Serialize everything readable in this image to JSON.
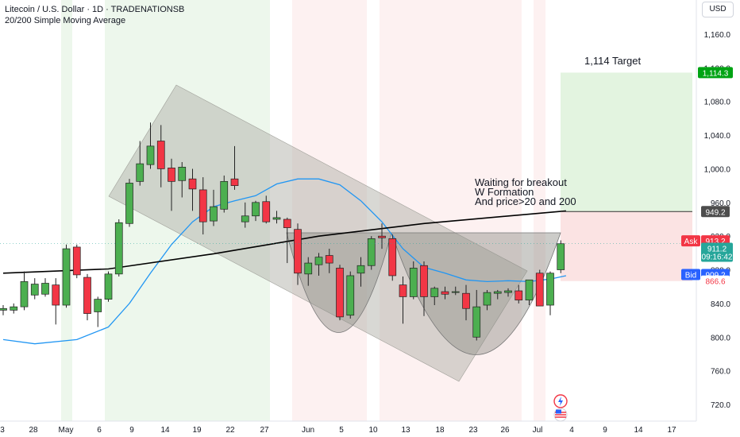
{
  "header": {
    "title": "Litecoin / U.S. Dollar · 1D · TRADENATIONSB",
    "subtitle": "20/200 Simple Moving Average"
  },
  "currency_label": "USD",
  "annotations": {
    "target": "1,114 Target",
    "note_line1": "Waiting for breakout",
    "note_line2": "W Formation",
    "note_line3": "And price>20 and 200"
  },
  "colors": {
    "up": "#26a69a",
    "up_fill": "#4caf50",
    "down": "#f23645",
    "ma20": "#2196f3",
    "ma200": "#000000",
    "profit_zone": "#e3f4e0",
    "loss_zone": "#fbe3e3",
    "green_band": "#edf7ec",
    "red_band": "#fdf1f1",
    "channel": "#b2b2aa"
  },
  "chart_data": {
    "type": "candlestick",
    "title": "Litecoin / U.S. Dollar · 1D · TRADENATIONSB",
    "x_tick_labels": [
      "3",
      "28",
      "May",
      "6",
      "9",
      "14",
      "19",
      "22",
      "27",
      "Jun",
      "5",
      "10",
      "13",
      "18",
      "23",
      "26",
      "Jul",
      "4",
      "9",
      "14",
      "17"
    ],
    "y_tick_labels": [
      "1,160.0",
      "1,120.0",
      "1,080.0",
      "1,040.0",
      "1,000.0",
      "960.0",
      "920.0",
      "880.0",
      "840.0",
      "800.0",
      "760.0",
      "720.0"
    ],
    "ylim": [
      700,
      1190
    ],
    "candles": [
      {
        "o": 832,
        "h": 838,
        "l": 826,
        "c": 834
      },
      {
        "o": 832,
        "h": 840,
        "l": 828,
        "c": 836
      },
      {
        "o": 836,
        "h": 878,
        "l": 832,
        "c": 866
      },
      {
        "o": 850,
        "h": 870,
        "l": 845,
        "c": 863
      },
      {
        "o": 851,
        "h": 870,
        "l": 848,
        "c": 864
      },
      {
        "o": 862,
        "h": 870,
        "l": 815,
        "c": 838
      },
      {
        "o": 838,
        "h": 910,
        "l": 835,
        "c": 905
      },
      {
        "o": 907,
        "h": 910,
        "l": 870,
        "c": 874
      },
      {
        "o": 871,
        "h": 875,
        "l": 820,
        "c": 828
      },
      {
        "o": 830,
        "h": 848,
        "l": 812,
        "c": 845
      },
      {
        "o": 845,
        "h": 878,
        "l": 842,
        "c": 875
      },
      {
        "o": 875,
        "h": 940,
        "l": 872,
        "c": 936
      },
      {
        "o": 935,
        "h": 988,
        "l": 931,
        "c": 983
      },
      {
        "o": 985,
        "h": 1033,
        "l": 980,
        "c": 1006
      },
      {
        "o": 1005,
        "h": 1055,
        "l": 1000,
        "c": 1027
      },
      {
        "o": 1033,
        "h": 1052,
        "l": 978,
        "c": 1000
      },
      {
        "o": 1001,
        "h": 1012,
        "l": 950,
        "c": 985
      },
      {
        "o": 986,
        "h": 1008,
        "l": 966,
        "c": 1002
      },
      {
        "o": 988,
        "h": 1000,
        "l": 950,
        "c": 976
      },
      {
        "o": 975,
        "h": 990,
        "l": 922,
        "c": 937
      },
      {
        "o": 938,
        "h": 975,
        "l": 932,
        "c": 955
      },
      {
        "o": 952,
        "h": 992,
        "l": 948,
        "c": 985
      },
      {
        "o": 988,
        "h": 1027,
        "l": 975,
        "c": 980
      },
      {
        "o": 937,
        "h": 960,
        "l": 930,
        "c": 944
      },
      {
        "o": 944,
        "h": 962,
        "l": 938,
        "c": 960
      },
      {
        "o": 961,
        "h": 968,
        "l": 935,
        "c": 937
      },
      {
        "o": 940,
        "h": 950,
        "l": 935,
        "c": 942
      },
      {
        "o": 940,
        "h": 942,
        "l": 888,
        "c": 930
      },
      {
        "o": 928,
        "h": 935,
        "l": 862,
        "c": 876
      },
      {
        "o": 875,
        "h": 895,
        "l": 861,
        "c": 888
      },
      {
        "o": 886,
        "h": 900,
        "l": 873,
        "c": 895
      },
      {
        "o": 897,
        "h": 905,
        "l": 876,
        "c": 888
      },
      {
        "o": 882,
        "h": 886,
        "l": 820,
        "c": 824
      },
      {
        "o": 826,
        "h": 878,
        "l": 822,
        "c": 873
      },
      {
        "o": 876,
        "h": 895,
        "l": 860,
        "c": 885
      },
      {
        "o": 885,
        "h": 920,
        "l": 880,
        "c": 917
      },
      {
        "o": 920,
        "h": 935,
        "l": 905,
        "c": 918
      },
      {
        "o": 917,
        "h": 922,
        "l": 867,
        "c": 873
      },
      {
        "o": 862,
        "h": 872,
        "l": 816,
        "c": 848
      },
      {
        "o": 848,
        "h": 890,
        "l": 845,
        "c": 882
      },
      {
        "o": 885,
        "h": 890,
        "l": 825,
        "c": 848
      },
      {
        "o": 848,
        "h": 860,
        "l": 838,
        "c": 858
      },
      {
        "o": 854,
        "h": 860,
        "l": 845,
        "c": 851
      },
      {
        "o": 853,
        "h": 860,
        "l": 850,
        "c": 854
      },
      {
        "o": 852,
        "h": 862,
        "l": 820,
        "c": 834
      },
      {
        "o": 800,
        "h": 856,
        "l": 796,
        "c": 836
      },
      {
        "o": 838,
        "h": 856,
        "l": 832,
        "c": 853
      },
      {
        "o": 852,
        "h": 856,
        "l": 845,
        "c": 854
      },
      {
        "o": 853,
        "h": 858,
        "l": 848,
        "c": 855
      },
      {
        "o": 855,
        "h": 862,
        "l": 840,
        "c": 844
      },
      {
        "o": 844,
        "h": 866,
        "l": 838,
        "c": 868
      },
      {
        "o": 876,
        "h": 880,
        "l": 837,
        "c": 837
      },
      {
        "o": 838,
        "h": 878,
        "l": 826,
        "c": 876
      },
      {
        "o": 880,
        "h": 915,
        "l": 876,
        "c": 911
      }
    ],
    "series": [
      {
        "name": "20 SMA",
        "values": [
          {
            "i": 0,
            "v": 797
          },
          {
            "i": 3,
            "v": 792
          },
          {
            "i": 7,
            "v": 797
          },
          {
            "i": 10,
            "v": 812
          },
          {
            "i": 12,
            "v": 840
          },
          {
            "i": 14,
            "v": 876
          },
          {
            "i": 16,
            "v": 910
          },
          {
            "i": 18,
            "v": 937
          },
          {
            "i": 20,
            "v": 955
          },
          {
            "i": 22,
            "v": 962
          },
          {
            "i": 24,
            "v": 968
          },
          {
            "i": 26,
            "v": 982
          },
          {
            "i": 28,
            "v": 988
          },
          {
            "i": 30,
            "v": 988
          },
          {
            "i": 32,
            "v": 981
          },
          {
            "i": 34,
            "v": 962
          },
          {
            "i": 36,
            "v": 937
          },
          {
            "i": 38,
            "v": 905
          },
          {
            "i": 40,
            "v": 883
          },
          {
            "i": 42,
            "v": 876
          },
          {
            "i": 44,
            "v": 868
          },
          {
            "i": 46,
            "v": 866
          },
          {
            "i": 48,
            "v": 867
          },
          {
            "i": 50,
            "v": 866
          },
          {
            "i": 52,
            "v": 869
          },
          {
            "i": 53.5,
            "v": 873
          }
        ]
      },
      {
        "name": "200 SMA",
        "values": [
          {
            "i": 0,
            "v": 876
          },
          {
            "i": 10,
            "v": 881
          },
          {
            "i": 20,
            "v": 899
          },
          {
            "i": 30,
            "v": 920
          },
          {
            "i": 40,
            "v": 935
          },
          {
            "i": 53.5,
            "v": 950
          }
        ]
      }
    ],
    "price_labels": {
      "target": "1,114.3",
      "level": "949.2",
      "ask": {
        "text": "Ask",
        "value": "913.2"
      },
      "last": {
        "value": "911.2",
        "countdown": "09:16:42"
      },
      "bid": {
        "text": "Bid",
        "value": "909.2"
      },
      "stop": "866.6"
    },
    "target_level": 1114.3,
    "entry_level": 949.2,
    "stop_level": 866.6,
    "grid": false,
    "legend": "none"
  }
}
